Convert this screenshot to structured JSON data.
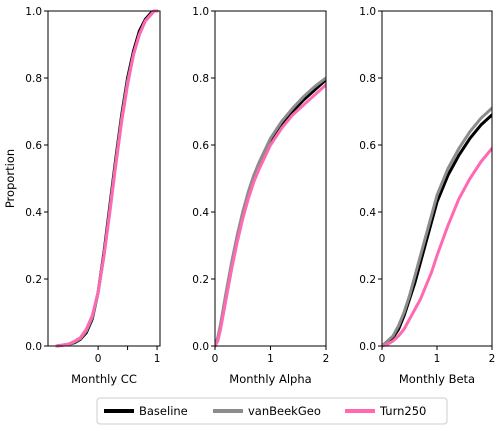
{
  "chart_data": [
    {
      "type": "line",
      "xlabel": "Monthly CC",
      "ylabel": "Proportion",
      "xlim": [
        -0.85,
        1.05
      ],
      "ylim": [
        0,
        1
      ],
      "xticks": [
        0,
        0.5,
        1
      ],
      "xtick_labels": [
        "0",
        "",
        "1"
      ],
      "yticks": [
        0,
        0.2,
        0.4,
        0.6,
        0.8,
        1.0
      ],
      "ytick_labels": [
        "0.0",
        "0.2",
        "0.4",
        "0.6",
        "0.8",
        "1.0"
      ],
      "series": [
        {
          "name": "Baseline",
          "x": [
            -0.7,
            -0.5,
            -0.4,
            -0.3,
            -0.2,
            -0.1,
            0,
            0.1,
            0.2,
            0.3,
            0.4,
            0.5,
            0.6,
            0.7,
            0.8,
            0.9,
            0.95,
            1.0
          ],
          "y": [
            0,
            0.005,
            0.01,
            0.02,
            0.04,
            0.08,
            0.16,
            0.28,
            0.42,
            0.56,
            0.69,
            0.8,
            0.88,
            0.94,
            0.975,
            0.995,
            1.0,
            1.0
          ]
        },
        {
          "name": "vanBeekGeo",
          "x": [
            -0.7,
            -0.5,
            -0.4,
            -0.3,
            -0.2,
            -0.1,
            0,
            0.1,
            0.2,
            0.3,
            0.4,
            0.5,
            0.6,
            0.7,
            0.8,
            0.9,
            0.95,
            1.0
          ],
          "y": [
            0,
            0.005,
            0.012,
            0.022,
            0.045,
            0.085,
            0.16,
            0.27,
            0.41,
            0.55,
            0.68,
            0.79,
            0.87,
            0.93,
            0.97,
            0.99,
            1.0,
            1.0
          ]
        },
        {
          "name": "Turn250",
          "x": [
            -0.7,
            -0.5,
            -0.4,
            -0.3,
            -0.2,
            -0.1,
            0,
            0.1,
            0.2,
            0.3,
            0.4,
            0.5,
            0.6,
            0.7,
            0.8,
            0.9,
            0.95,
            1.0
          ],
          "y": [
            0,
            0.006,
            0.014,
            0.025,
            0.05,
            0.09,
            0.16,
            0.27,
            0.4,
            0.54,
            0.67,
            0.78,
            0.87,
            0.93,
            0.97,
            0.99,
            1.0,
            1.0
          ]
        }
      ]
    },
    {
      "type": "line",
      "xlabel": "Monthly Alpha",
      "ylabel": "",
      "xlim": [
        0,
        2
      ],
      "ylim": [
        0,
        1
      ],
      "xticks": [
        0,
        1,
        2
      ],
      "xtick_labels": [
        "0",
        "1",
        "2"
      ],
      "yticks": [
        0,
        0.2,
        0.4,
        0.6,
        0.8,
        1.0
      ],
      "ytick_labels": [
        "0.0",
        "0.2",
        "0.4",
        "0.6",
        "0.8",
        "1.0"
      ],
      "series": [
        {
          "name": "Baseline",
          "x": [
            0,
            0.05,
            0.1,
            0.2,
            0.3,
            0.4,
            0.5,
            0.6,
            0.7,
            0.8,
            0.9,
            1.0,
            1.2,
            1.4,
            1.6,
            1.8,
            2.0
          ],
          "y": [
            0,
            0.02,
            0.06,
            0.15,
            0.24,
            0.32,
            0.39,
            0.45,
            0.5,
            0.54,
            0.575,
            0.61,
            0.66,
            0.7,
            0.735,
            0.765,
            0.795
          ]
        },
        {
          "name": "vanBeekGeo",
          "x": [
            0,
            0.05,
            0.1,
            0.2,
            0.3,
            0.4,
            0.5,
            0.6,
            0.7,
            0.8,
            0.9,
            1.0,
            1.2,
            1.4,
            1.6,
            1.8,
            2.0
          ],
          "y": [
            0,
            0.025,
            0.065,
            0.16,
            0.25,
            0.33,
            0.4,
            0.46,
            0.51,
            0.55,
            0.585,
            0.62,
            0.67,
            0.71,
            0.745,
            0.775,
            0.8
          ]
        },
        {
          "name": "Turn250",
          "x": [
            0,
            0.05,
            0.1,
            0.2,
            0.3,
            0.4,
            0.5,
            0.6,
            0.7,
            0.8,
            0.9,
            1.0,
            1.2,
            1.4,
            1.6,
            1.8,
            2.0
          ],
          "y": [
            0,
            0.015,
            0.05,
            0.14,
            0.23,
            0.31,
            0.38,
            0.44,
            0.49,
            0.53,
            0.565,
            0.6,
            0.65,
            0.69,
            0.72,
            0.75,
            0.78
          ]
        }
      ]
    },
    {
      "type": "line",
      "xlabel": "Monthly Beta",
      "ylabel": "",
      "xlim": [
        0,
        2
      ],
      "ylim": [
        0,
        1
      ],
      "xticks": [
        0,
        1,
        2
      ],
      "xtick_labels": [
        "0",
        "1",
        "2"
      ],
      "yticks": [
        0,
        0.2,
        0.4,
        0.6,
        0.8,
        1.0
      ],
      "ytick_labels": [
        "0.0",
        "0.2",
        "0.4",
        "0.6",
        "0.8",
        "1.0"
      ],
      "series": [
        {
          "name": "Baseline",
          "x": [
            0,
            0.1,
            0.2,
            0.3,
            0.4,
            0.5,
            0.6,
            0.7,
            0.8,
            0.9,
            1.0,
            1.2,
            1.4,
            1.6,
            1.8,
            2.0
          ],
          "y": [
            0,
            0.01,
            0.025,
            0.05,
            0.09,
            0.14,
            0.19,
            0.25,
            0.31,
            0.37,
            0.43,
            0.51,
            0.57,
            0.62,
            0.66,
            0.69
          ]
        },
        {
          "name": "vanBeekGeo",
          "x": [
            0,
            0.1,
            0.2,
            0.3,
            0.4,
            0.5,
            0.6,
            0.7,
            0.8,
            0.9,
            1.0,
            1.2,
            1.4,
            1.6,
            1.8,
            2.0
          ],
          "y": [
            0,
            0.015,
            0.03,
            0.06,
            0.1,
            0.15,
            0.21,
            0.27,
            0.33,
            0.39,
            0.45,
            0.53,
            0.59,
            0.64,
            0.68,
            0.71
          ]
        },
        {
          "name": "Turn250",
          "x": [
            0,
            0.1,
            0.2,
            0.3,
            0.4,
            0.5,
            0.6,
            0.7,
            0.8,
            0.9,
            1.0,
            1.2,
            1.4,
            1.6,
            1.8,
            2.0
          ],
          "y": [
            0,
            0.005,
            0.015,
            0.03,
            0.05,
            0.08,
            0.11,
            0.14,
            0.18,
            0.22,
            0.27,
            0.36,
            0.44,
            0.5,
            0.55,
            0.59
          ]
        }
      ]
    }
  ],
  "legend": {
    "placement": "bottom-center",
    "entries": [
      {
        "name": "Baseline",
        "color": "#000000"
      },
      {
        "name": "vanBeekGeo",
        "color": "#8c8c8c"
      },
      {
        "name": "Turn250",
        "color": "#ff69b4"
      }
    ]
  },
  "colors": {
    "Baseline": "#000000",
    "vanBeekGeo": "#8c8c8c",
    "Turn250": "#ff69b4"
  }
}
